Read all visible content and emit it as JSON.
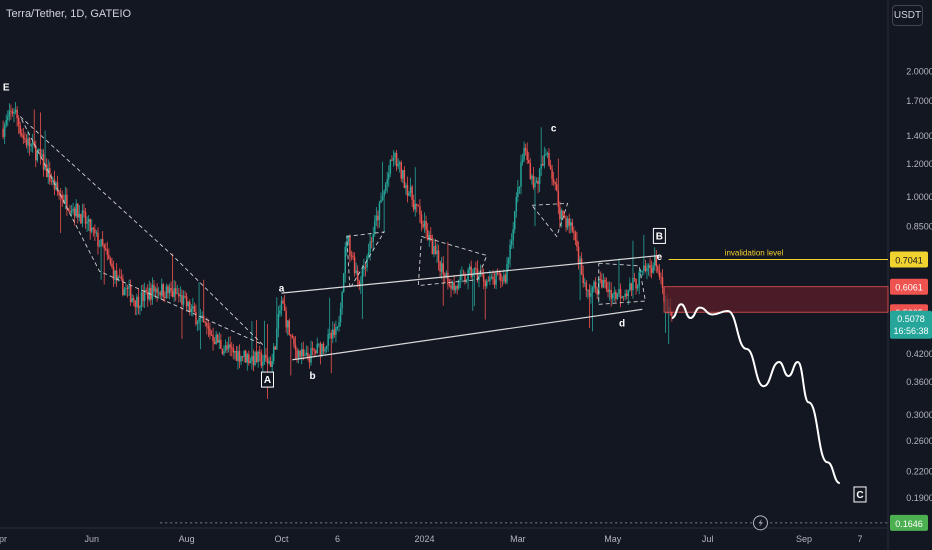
{
  "header": {
    "symbol_title": "Terra/Tether, 1D, GATEIO",
    "currency": "USDT"
  },
  "colors": {
    "background": "#131722",
    "up": "#26a69a",
    "down": "#ef5350",
    "text": "#d1d4dc",
    "axis_text": "#b2b5be",
    "annotation": "#ffffff",
    "invalidation": "#f2d22e",
    "zone": "#5c1f2a",
    "price_bg": "#26a69a",
    "target_bg": "#4caf50"
  },
  "chart_data": {
    "type": "candlestick",
    "scale": "log",
    "ylim": [
      0.16,
      2.5
    ],
    "y_ticks": [
      "2.0000",
      "1.7000",
      "1.4000",
      "1.2000",
      "1.0000",
      "0.8500",
      "0.7041",
      "0.6061",
      "0.5265",
      "0.5078",
      "0.4200",
      "0.3600",
      "0.3000",
      "0.2600",
      "0.2200",
      "0.1900",
      "0.1646"
    ],
    "y_tick_values": [
      2.0,
      1.7,
      1.4,
      1.2,
      1.0,
      0.85,
      0.42,
      0.36,
      0.3,
      0.26,
      0.22,
      0.19
    ],
    "x_ticks": [
      {
        "label": "Apr",
        "date": "2023-04-03"
      },
      {
        "label": "Jun",
        "date": "2023-06-01"
      },
      {
        "label": "Aug",
        "date": "2023-08-01"
      },
      {
        "label": "Oct",
        "date": "2023-10-01"
      },
      {
        "label": "6",
        "date": "2023-11-06"
      },
      {
        "label": "2024",
        "date": "2024-01-01"
      },
      {
        "label": "Mar",
        "date": "2024-03-01"
      },
      {
        "label": "May",
        "date": "2024-05-01"
      },
      {
        "label": "Jul",
        "date": "2024-07-01"
      },
      {
        "label": "Sep",
        "date": "2024-09-01"
      },
      {
        "label": "7",
        "date": "2024-10-07"
      }
    ],
    "xlim": [
      "2023-04-03",
      "2024-10-25"
    ],
    "price_path": [
      [
        "2023-04-05",
        1.45
      ],
      [
        "2023-04-12",
        1.62
      ],
      [
        "2023-04-18",
        1.38
      ],
      [
        "2023-04-28",
        1.25
      ],
      [
        "2023-05-10",
        1.02
      ],
      [
        "2023-05-25",
        0.9
      ],
      [
        "2023-06-08",
        0.75
      ],
      [
        "2023-06-18",
        0.62
      ],
      [
        "2023-06-30",
        0.56
      ],
      [
        "2023-07-12",
        0.6
      ],
      [
        "2023-07-26",
        0.58
      ],
      [
        "2023-08-10",
        0.5
      ],
      [
        "2023-08-25",
        0.43
      ],
      [
        "2023-09-10",
        0.41
      ],
      [
        "2023-09-25",
        0.4
      ],
      [
        "2023-10-01",
        0.56
      ],
      [
        "2023-10-08",
        0.44
      ],
      [
        "2023-10-16",
        0.405
      ],
      [
        "2023-10-28",
        0.44
      ],
      [
        "2023-11-06",
        0.47
      ],
      [
        "2023-11-12",
        0.8
      ],
      [
        "2023-11-20",
        0.62
      ],
      [
        "2023-12-02",
        0.9
      ],
      [
        "2023-12-12",
        1.25
      ],
      [
        "2023-12-26",
        0.95
      ],
      [
        "2024-01-08",
        0.72
      ],
      [
        "2024-01-20",
        0.6
      ],
      [
        "2024-02-01",
        0.66
      ],
      [
        "2024-02-12",
        0.62
      ],
      [
        "2024-02-22",
        0.64
      ],
      [
        "2024-03-05",
        1.3
      ],
      [
        "2024-03-12",
        1.05
      ],
      [
        "2024-03-20",
        1.28
      ],
      [
        "2024-03-28",
        0.92
      ],
      [
        "2024-04-06",
        0.82
      ],
      [
        "2024-04-14",
        0.58
      ],
      [
        "2024-04-24",
        0.62
      ],
      [
        "2024-05-02",
        0.58
      ],
      [
        "2024-05-12",
        0.6
      ],
      [
        "2024-05-22",
        0.66
      ],
      [
        "2024-05-29",
        0.7
      ],
      [
        "2024-06-03",
        0.56
      ],
      [
        "2024-06-08",
        0.5078
      ]
    ],
    "labels": [
      {
        "text": "E",
        "date": "2023-04-07",
        "value": 1.82,
        "boxed": false
      },
      {
        "text": "A",
        "date": "2023-09-22",
        "value": 0.362,
        "boxed": true
      },
      {
        "text": "a",
        "date": "2023-10-01",
        "value": 0.6,
        "boxed": false
      },
      {
        "text": "b",
        "date": "2023-10-21",
        "value": 0.37,
        "boxed": false
      },
      {
        "text": "c",
        "date": "2024-03-24",
        "value": 1.45,
        "boxed": false
      },
      {
        "text": "d",
        "date": "2024-05-07",
        "value": 0.495,
        "boxed": false
      },
      {
        "text": "B",
        "date": "2024-05-31",
        "value": 0.8,
        "boxed": true
      },
      {
        "text": "e",
        "date": "2024-05-31",
        "value": 0.715,
        "boxed": false
      },
      {
        "text": "C",
        "date": "2024-10-07",
        "value": 0.192,
        "boxed": true
      }
    ],
    "lines": [
      {
        "name": "upper-trendline",
        "points": [
          [
            "2023-10-01",
            0.585
          ],
          [
            "2024-05-31",
            0.72
          ]
        ]
      },
      {
        "name": "lower-trendline",
        "points": [
          [
            "2023-10-08",
            0.405
          ],
          [
            "2024-05-20",
            0.535
          ]
        ]
      }
    ],
    "projection": [
      [
        "2024-06-08",
        0.51
      ],
      [
        "2024-06-14",
        0.55
      ],
      [
        "2024-06-20",
        0.51
      ],
      [
        "2024-06-26",
        0.54
      ],
      [
        "2024-07-04",
        0.52
      ],
      [
        "2024-07-14",
        0.53
      ],
      [
        "2024-07-26",
        0.43
      ],
      [
        "2024-08-06",
        0.35
      ],
      [
        "2024-08-16",
        0.4
      ],
      [
        "2024-08-22",
        0.37
      ],
      [
        "2024-08-28",
        0.4
      ],
      [
        "2024-09-04",
        0.32
      ],
      [
        "2024-09-16",
        0.23
      ],
      [
        "2024-09-24",
        0.205
      ]
    ],
    "resistance_zone": {
      "top": 0.6061,
      "bottom": 0.5265
    },
    "invalidation": {
      "label": "invalidation level",
      "value": 0.7041
    },
    "target": {
      "value": 0.1646
    },
    "current": {
      "value": 0.5078,
      "countdown": "16:56:38"
    }
  }
}
